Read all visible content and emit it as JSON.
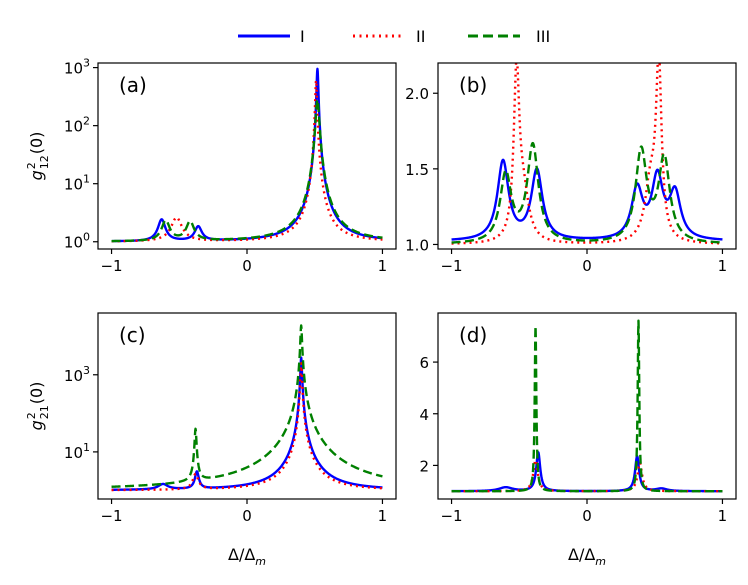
{
  "legend": {
    "entries": [
      {
        "label": "I",
        "color": "#0000ff",
        "dash": "solid"
      },
      {
        "label": "II",
        "color": "#ff0000",
        "dash": "dotted"
      },
      {
        "label": "III",
        "color": "#008000",
        "dash": "dashed"
      }
    ]
  },
  "chart_data": [
    {
      "type": "line",
      "panel_label": "(a)",
      "yscale": "log",
      "xlim": [
        -1.1,
        1.1
      ],
      "ylim": [
        0.75,
        1200
      ],
      "xticks": [
        -1,
        0,
        1
      ],
      "xtick_labels": [
        "−1",
        "0",
        "1"
      ],
      "yticks": [
        1,
        10,
        100,
        1000
      ],
      "ytick_labels": [
        {
          "base": "10",
          "exp": "0"
        },
        {
          "base": "10",
          "exp": "1"
        },
        {
          "base": "10",
          "exp": "2"
        },
        {
          "base": "10",
          "exp": "3"
        }
      ],
      "ylabel": {
        "g": "g",
        "sup": "2",
        "sub": "12",
        "arg": "(0)"
      },
      "xlabel": "",
      "series": [
        {
          "name": "I",
          "baseline": 1,
          "peaks": [
            [
              -0.63,
              1.4,
              0.028
            ],
            [
              -0.36,
              0.8,
              0.028
            ],
            [
              0.52,
              950,
              0.006
            ]
          ]
        },
        {
          "name": "II",
          "baseline": 1,
          "peaks": [
            [
              -0.52,
              1.6,
              0.04
            ],
            [
              0.51,
              600,
              0.006
            ]
          ]
        },
        {
          "name": "III",
          "baseline": 1,
          "peaks": [
            [
              -0.6,
              1.3,
              0.03
            ],
            [
              -0.42,
              1.2,
              0.03
            ],
            [
              0.52,
              280,
              0.012
            ]
          ]
        }
      ]
    },
    {
      "type": "line",
      "panel_label": "(b)",
      "yscale": "linear",
      "xlim": [
        -1.1,
        1.1
      ],
      "ylim": [
        0.97,
        2.2
      ],
      "xticks": [
        -1,
        0,
        1
      ],
      "xtick_labels": [
        "−1",
        "0",
        "1"
      ],
      "yticks": [
        1.0,
        1.5,
        2.0
      ],
      "ytick_labels": [
        "1.0",
        "1.5",
        "2.0"
      ],
      "ylabel": null,
      "xlabel": "",
      "series": [
        {
          "name": "I",
          "baseline": 1.02,
          "peaks": [
            [
              -0.62,
              0.52,
              0.05
            ],
            [
              -0.37,
              0.46,
              0.05
            ],
            [
              0.37,
              0.33,
              0.05
            ],
            [
              0.52,
              0.4,
              0.05
            ],
            [
              0.65,
              0.3,
              0.05
            ]
          ]
        },
        {
          "name": "II",
          "baseline": 1.0,
          "peaks": [
            [
              -0.52,
              1.08,
              0.025
            ],
            [
              -0.47,
              0.3,
              0.05
            ],
            [
              0.47,
              0.38,
              0.05
            ],
            [
              0.53,
              1.12,
              0.025
            ]
          ]
        },
        {
          "name": "III",
          "baseline": 1.0,
          "peaks": [
            [
              -0.6,
              0.45,
              0.05
            ],
            [
              -0.4,
              0.64,
              0.05
            ],
            [
              0.4,
              0.6,
              0.05
            ],
            [
              0.57,
              0.55,
              0.05
            ]
          ]
        }
      ]
    },
    {
      "type": "line",
      "panel_label": "(c)",
      "yscale": "log",
      "xlim": [
        -1.1,
        1.1
      ],
      "ylim": [
        0.6,
        40000
      ],
      "xticks": [
        -1,
        0,
        1
      ],
      "xtick_labels": [
        "−1",
        "0",
        "1"
      ],
      "yticks": [
        10,
        1000
      ],
      "ytick_labels": [
        {
          "base": "10",
          "exp": "1"
        },
        {
          "base": "10",
          "exp": "3"
        }
      ],
      "ylabel": {
        "g": "g",
        "sup": "2",
        "sub": "21",
        "arg": "(0)"
      },
      "xlabel": "Δ/Δ",
      "xlabel_sub": "m",
      "series": [
        {
          "name": "I",
          "baseline": 1,
          "peaks": [
            [
              -0.62,
              0.4,
              0.04
            ],
            [
              -0.37,
              2.0,
              0.014
            ],
            [
              0.4,
              2800,
              0.005
            ]
          ]
        },
        {
          "name": "II",
          "baseline": 1,
          "peaks": [
            [
              -0.38,
              1.6,
              0.02
            ],
            [
              0.4,
              2000,
              0.005
            ]
          ]
        },
        {
          "name": "III",
          "baseline": 1,
          "peaks": [
            [
              -0.38,
              38,
              0.006
            ],
            [
              0.4,
              19000,
              0.005
            ]
          ]
        }
      ]
    },
    {
      "type": "line",
      "panel_label": "(d)",
      "yscale": "linear",
      "xlim": [
        -1.1,
        1.1
      ],
      "ylim": [
        0.7,
        7.9
      ],
      "xticks": [
        -1,
        0,
        1
      ],
      "xtick_labels": [
        "−1",
        "0",
        "1"
      ],
      "yticks": [
        2,
        4,
        6
      ],
      "ytick_labels": [
        "2",
        "4",
        "6"
      ],
      "ylabel": null,
      "xlabel": "Δ/Δ",
      "xlabel_sub": "m",
      "series": [
        {
          "name": "I",
          "baseline": 1,
          "peaks": [
            [
              -0.6,
              0.15,
              0.06
            ],
            [
              -0.36,
              1.5,
              0.018
            ],
            [
              0.37,
              1.35,
              0.018
            ],
            [
              0.55,
              0.1,
              0.05
            ]
          ]
        },
        {
          "name": "II",
          "baseline": 1,
          "peaks": [
            [
              -0.38,
              1.2,
              0.02
            ],
            [
              0.39,
              1.1,
              0.02
            ]
          ]
        },
        {
          "name": "III",
          "baseline": 1,
          "peaks": [
            [
              -0.38,
              6.4,
              0.007
            ],
            [
              0.38,
              6.6,
              0.007
            ]
          ]
        }
      ]
    }
  ]
}
